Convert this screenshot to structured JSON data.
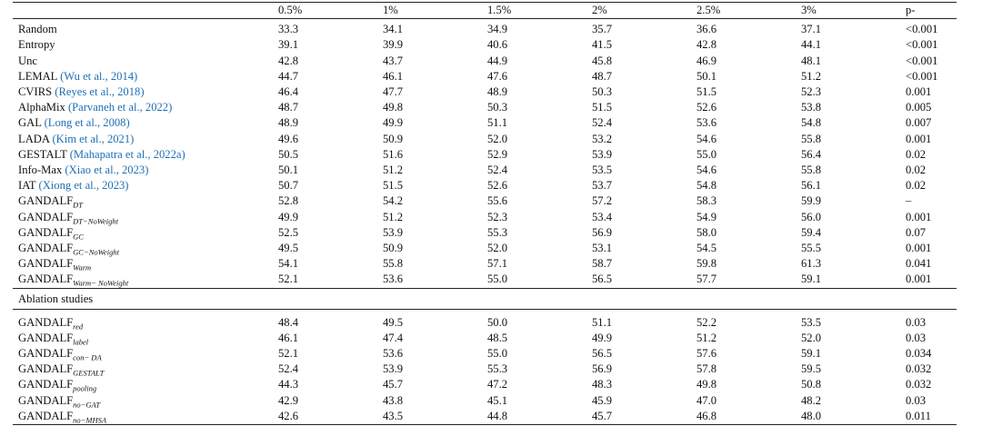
{
  "header": {
    "columns": [
      "",
      "0.5%",
      "1%",
      "1.5%",
      "2%",
      "2.5%",
      "3%",
      "p-"
    ]
  },
  "main_rows": [
    {
      "name": "Random",
      "cite": "",
      "sub": "",
      "values": [
        "33.3",
        "34.1",
        "34.9",
        "35.7",
        "36.6",
        "37.1"
      ],
      "p": "<0.001"
    },
    {
      "name": "Entropy",
      "cite": "",
      "sub": "",
      "values": [
        "39.1",
        "39.9",
        "40.6",
        "41.5",
        "42.8",
        "44.1"
      ],
      "p": "<0.001"
    },
    {
      "name": "Unc",
      "cite": "",
      "sub": "",
      "values": [
        "42.8",
        "43.7",
        "44.9",
        "45.8",
        "46.9",
        "48.1"
      ],
      "p": "<0.001"
    },
    {
      "name": "LEMAL",
      "cite": "(Wu et al., 2014)",
      "sub": "",
      "values": [
        "44.7",
        "46.1",
        "47.6",
        "48.7",
        "50.1",
        "51.2"
      ],
      "p": "<0.001"
    },
    {
      "name": "CVIRS",
      "cite": "(Reyes et al., 2018)",
      "sub": "",
      "values": [
        "46.4",
        "47.7",
        "48.9",
        "50.3",
        "51.5",
        "52.3"
      ],
      "p": "0.001"
    },
    {
      "name": "AlphaMix",
      "cite": "(Parvaneh et al., 2022)",
      "sub": "",
      "values": [
        "48.7",
        "49.8",
        "50.3",
        "51.5",
        "52.6",
        "53.8"
      ],
      "p": "0.005"
    },
    {
      "name": "GAL",
      "cite": "(Long et al., 2008)",
      "sub": "",
      "values": [
        "48.9",
        "49.9",
        "51.1",
        "52.4",
        "53.6",
        "54.8"
      ],
      "p": "0.007"
    },
    {
      "name": "LADA",
      "cite": "(Kim et al., 2021)",
      "sub": "",
      "values": [
        "49.6",
        "50.9",
        "52.0",
        "53.2",
        "54.6",
        "55.8"
      ],
      "p": "0.001"
    },
    {
      "name": "GESTALT",
      "cite": "(Mahapatra et al., 2022a)",
      "sub": "",
      "values": [
        "50.5",
        "51.6",
        "52.9",
        "53.9",
        "55.0",
        "56.4"
      ],
      "p": "0.02"
    },
    {
      "name": "Info-Max",
      "cite": "(Xiao et al., 2023)",
      "sub": "",
      "values": [
        "50.1",
        "51.2",
        "52.4",
        "53.5",
        "54.6",
        "55.8"
      ],
      "p": "0.02"
    },
    {
      "name": "IAT",
      "cite": "(Xiong et al., 2023)",
      "sub": "",
      "values": [
        "50.7",
        "51.5",
        "52.6",
        "53.7",
        "54.8",
        "56.1"
      ],
      "p": "0.02"
    },
    {
      "name": "GANDALF",
      "cite": "",
      "sub": "DT",
      "values": [
        "52.8",
        "54.2",
        "55.6",
        "57.2",
        "58.3",
        "59.9"
      ],
      "p": "–"
    },
    {
      "name": "GANDALF",
      "cite": "",
      "sub": "DT−NoWeight",
      "values": [
        "49.9",
        "51.2",
        "52.3",
        "53.4",
        "54.9",
        "56.0"
      ],
      "p": "0.001"
    },
    {
      "name": "GANDALF",
      "cite": "",
      "sub": "GC",
      "values": [
        "52.5",
        "53.9",
        "55.3",
        "56.9",
        "58.0",
        "59.4"
      ],
      "p": "0.07"
    },
    {
      "name": "GANDALF",
      "cite": "",
      "sub": "GC−NoWeight",
      "values": [
        "49.5",
        "50.9",
        "52.0",
        "53.1",
        "54.5",
        "55.5"
      ],
      "p": "0.001"
    },
    {
      "name": "GANDALF",
      "cite": "",
      "sub": "Warm",
      "values": [
        "54.1",
        "55.8",
        "57.1",
        "58.7",
        "59.8",
        "61.3"
      ],
      "p": "0.041"
    },
    {
      "name": "GANDALF",
      "cite": "",
      "sub": "Warm− NoWeight",
      "values": [
        "52.1",
        "53.6",
        "55.0",
        "56.5",
        "57.7",
        "59.1"
      ],
      "p": "0.001"
    }
  ],
  "ablation": {
    "title": "Ablation studies",
    "rows": [
      {
        "name": "GANDALF",
        "cite": "",
        "sub": "red",
        "values": [
          "48.4",
          "49.5",
          "50.0",
          "51.1",
          "52.2",
          "53.5"
        ],
        "p": "0.03"
      },
      {
        "name": "GANDALF",
        "cite": "",
        "sub": "label",
        "values": [
          "46.1",
          "47.4",
          "48.5",
          "49.9",
          "51.2",
          "52.0"
        ],
        "p": "0.03"
      },
      {
        "name": "GANDALF",
        "cite": "",
        "sub": "con− DA",
        "values": [
          "52.1",
          "53.6",
          "55.0",
          "56.5",
          "57.6",
          "59.1"
        ],
        "p": "0.034"
      },
      {
        "name": "GANDALF",
        "cite": "",
        "sub": "GESTALT",
        "values": [
          "52.4",
          "53.9",
          "55.3",
          "56.9",
          "57.8",
          "59.5"
        ],
        "p": "0.032"
      },
      {
        "name": "GANDALF",
        "cite": "",
        "sub": "pooling",
        "values": [
          "44.3",
          "45.7",
          "47.2",
          "48.3",
          "49.8",
          "50.8"
        ],
        "p": "0.032"
      },
      {
        "name": "GANDALF",
        "cite": "",
        "sub": "no−GAT",
        "values": [
          "42.9",
          "43.8",
          "45.1",
          "45.9",
          "47.0",
          "48.2"
        ],
        "p": "0.03"
      },
      {
        "name": "GANDALF",
        "cite": "",
        "sub": "no−MHSA",
        "values": [
          "42.6",
          "43.5",
          "44.8",
          "45.7",
          "46.8",
          "48.0"
        ],
        "p": "0.011"
      }
    ]
  },
  "colors": {
    "citation": "#1f6fb4",
    "text": "#111111",
    "rule": "#222222"
  }
}
